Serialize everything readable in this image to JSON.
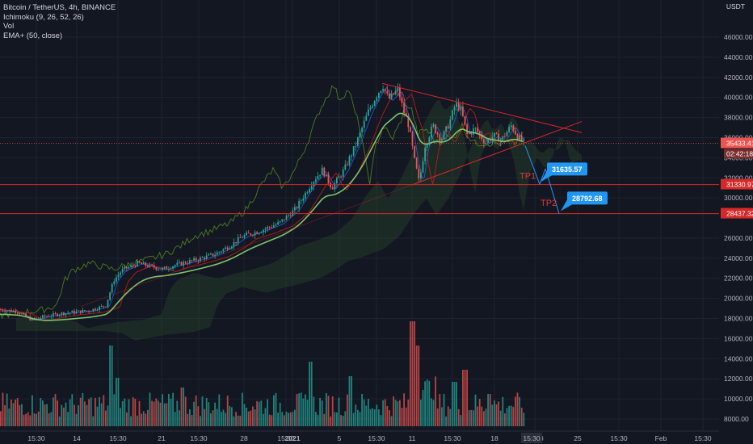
{
  "header": {
    "symbol_line": "Bitcoin / TetherUS, 4h, BINANCE",
    "indicators": [
      "Ichimoku (9, 26, 52, 26)",
      "Vol",
      "EMA+ (50, close)"
    ],
    "currency": "USDT"
  },
  "colors": {
    "background": "#131722",
    "up": "#26a69a",
    "down": "#ef5350",
    "ema": "#7ec46b",
    "ichimoku_span": "#4c7a1f",
    "level_line": "#d62828",
    "callout": "#2196f3"
  },
  "chart_data": {
    "type": "candlestick",
    "title": "Bitcoin / TetherUS, 4h, BINANCE",
    "y_axis": {
      "ylim": [
        7000,
        48000
      ],
      "price_ticks": [
        46000,
        44000,
        42000,
        40000,
        38000,
        36000,
        34000,
        32000,
        30000,
        26000,
        24000,
        22000,
        20000,
        18000,
        16000,
        14000,
        12000,
        10000,
        8000
      ],
      "price_tick_labels": [
        "46000.00",
        "44000.00",
        "42000.00",
        "40000.00",
        "38000.00",
        "36000.00",
        "34000.00",
        "32000.00",
        "30000.00",
        "26000.00",
        "24000.00",
        "22000.00",
        "20000.00",
        "18000.00",
        "16000.00",
        "14000.00",
        "12000.00",
        "10000.00",
        "8000.00"
      ],
      "side": "right"
    },
    "x_axis": {
      "tick_labels": [
        "15:30",
        "14",
        "15:30",
        "21",
        "15:30",
        "28",
        "15:30",
        "2021",
        "5",
        "15:30",
        "11",
        "15:30",
        "18",
        "15:30",
        "25",
        "15:30",
        "Feb",
        "15:30"
      ]
    },
    "price_series": [
      {
        "t": "Dec 9",
        "close": 18400
      },
      {
        "t": "Dec 11",
        "close": 17900
      },
      {
        "t": "Dec 13",
        "close": 18500
      },
      {
        "t": "Dec 15",
        "close": 19400
      },
      {
        "t": "Dec 17",
        "close": 22600
      },
      {
        "t": "Dec 19",
        "close": 23500
      },
      {
        "t": "Dec 21",
        "close": 23200
      },
      {
        "t": "Dec 23",
        "close": 23400
      },
      {
        "t": "Dec 25",
        "close": 24600
      },
      {
        "t": "Dec 27",
        "close": 26500
      },
      {
        "t": "Dec 29",
        "close": 27300
      },
      {
        "t": "Dec 31",
        "close": 29000
      },
      {
        "t": "Jan 2",
        "close": 32200
      },
      {
        "t": "Jan 4",
        "close": 31500
      },
      {
        "t": "Jan 6",
        "close": 36800
      },
      {
        "t": "Jan 8",
        "close": 40500
      },
      {
        "t": "Jan 9",
        "close": 40800
      },
      {
        "t": "Jan 10",
        "close": 38300
      },
      {
        "t": "Jan 11",
        "close": 33000
      },
      {
        "t": "Jan 12",
        "close": 34500
      },
      {
        "t": "Jan 13",
        "close": 37300
      },
      {
        "t": "Jan 14",
        "close": 39400
      },
      {
        "t": "Jan 15",
        "close": 36700
      },
      {
        "t": "Jan 16",
        "close": 36200
      },
      {
        "t": "Jan 17",
        "close": 35900
      },
      {
        "t": "Jan 18",
        "close": 36600
      },
      {
        "t": "Jan 19",
        "close": 36900
      },
      {
        "t": "Jan 20",
        "close": 35433
      }
    ],
    "volume": {
      "ylim": [
        0,
        100
      ],
      "note": "relative volume bars in lower pane"
    },
    "annotations": {
      "current_price": {
        "value": 35433.41,
        "label": "35433.41",
        "countdown": "02:42:18"
      },
      "levels": [
        {
          "value": 31330.97,
          "label": "31330.97"
        },
        {
          "value": 28437.32,
          "label": "28437.32"
        }
      ],
      "targets": [
        {
          "name": "TP1",
          "value": 31635.57,
          "label": "31635.57"
        },
        {
          "name": "TP2",
          "value": 28792.68,
          "label": "28792.68"
        }
      ]
    },
    "grid": true,
    "legend": "top-left"
  }
}
